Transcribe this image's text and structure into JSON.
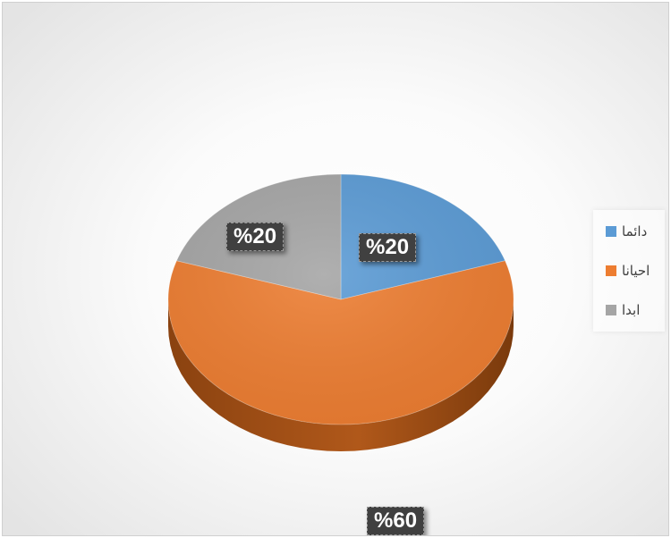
{
  "chart_data": {
    "type": "pie",
    "categories": [
      "دائما",
      "احيانا",
      "ابدا"
    ],
    "values": [
      20,
      60,
      20
    ],
    "data_labels": [
      "%20",
      "%60",
      "%20"
    ],
    "colors": [
      "#5b9bd5",
      "#ed7d31",
      "#a5a5a5"
    ],
    "style": "3d-pie",
    "legend_position": "right"
  }
}
